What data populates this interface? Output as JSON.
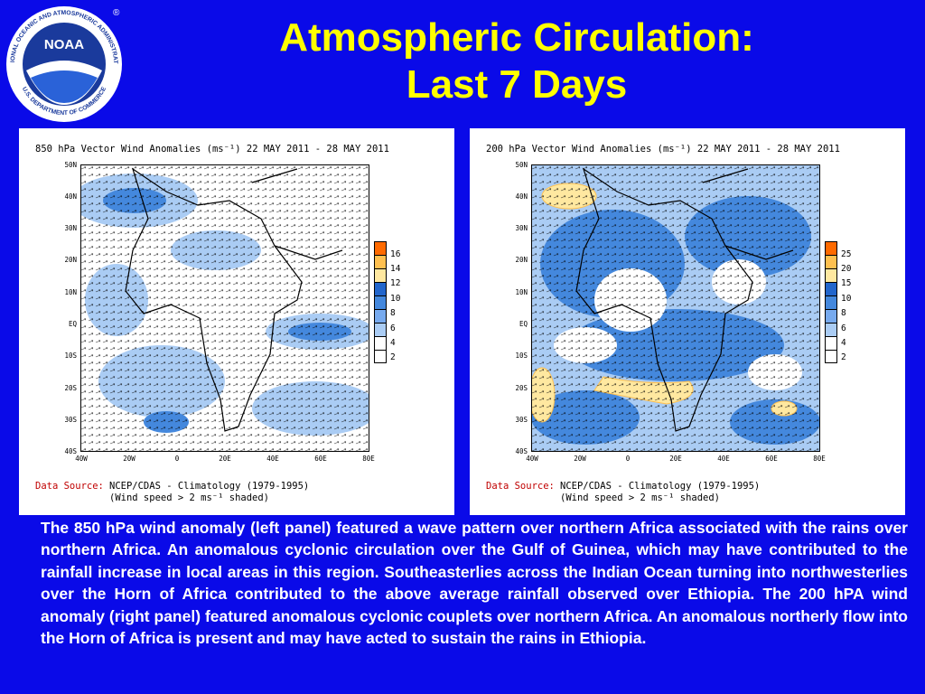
{
  "logo": {
    "ring_text": "NATIONAL OCEANIC AND ATMOSPHERIC ADMINISTRATION",
    "ring_text_bottom": "U.S. DEPARTMENT OF COMMERCE",
    "center_text": "NOAA",
    "registered": "®"
  },
  "title": {
    "line1": "Atmospheric Circulation:",
    "line2": "Last 7 Days"
  },
  "panels": [
    {
      "title": "850 hPa Vector Wind Anomalies (ms⁻¹) 22 MAY 2011 - 28 MAY 2011",
      "colorbar_labels": [
        "16",
        "14",
        "12",
        "10",
        "8",
        "6",
        "4",
        "2"
      ],
      "colorbar_colors": [
        "#ff6a00",
        "#ffc050",
        "#ffe8a0",
        "#2266cc",
        "#4488dd",
        "#77aaee",
        "#aaccf4",
        "#ffffff",
        "#ffffff"
      ]
    },
    {
      "title": "200 hPa Vector Wind Anomalies (ms⁻¹) 22 MAY 2011 - 28 MAY 2011",
      "colorbar_labels": [
        "25",
        "20",
        "15",
        "10",
        "8",
        "6",
        "4",
        "2"
      ],
      "colorbar_colors": [
        "#ff6a00",
        "#ffc050",
        "#ffe8a0",
        "#2266cc",
        "#4488dd",
        "#77aaee",
        "#aaccf4",
        "#ffffff",
        "#ffffff"
      ]
    }
  ],
  "axes": {
    "lat_labels": [
      "50N",
      "40N",
      "30N",
      "20N",
      "10N",
      "EQ",
      "10S",
      "20S",
      "30S",
      "40S"
    ],
    "lon_labels": [
      "40W",
      "20W",
      "0",
      "20E",
      "40E",
      "60E",
      "80E"
    ]
  },
  "source": {
    "label": "Data Source:",
    "line1": "NCEP/CDAS - Climatology (1979-1995)",
    "line2": "(Wind speed > 2 ms⁻¹ shaded)"
  },
  "description": "The 850 hPa wind anomaly (left panel) featured a wave pattern over northern Africa associated with the rains over northern Africa.  An anomalous cyclonic circulation over the Gulf of Guinea, which may have contributed to the rainfall increase in local areas in this region.  Southeasterlies across the Indian Ocean turning into northwesterlies over the Horn of Africa contributed to the above average rainfall observed over Ethiopia.  The 200 hPA wind anomaly (right panel) featured anomalous cyclonic couplets over northern Africa.  An anomalous northerly flow into the Horn of Africa is present and may have acted to sustain the rains in Ethiopia."
}
